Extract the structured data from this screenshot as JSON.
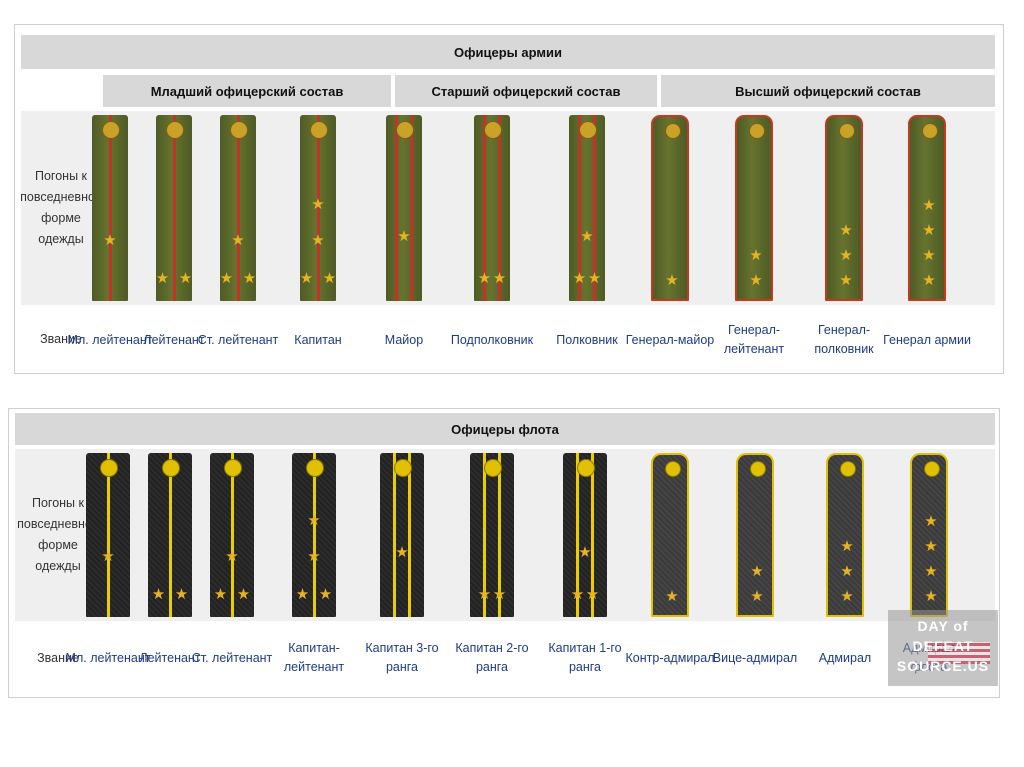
{
  "army": {
    "title": "Офицеры армии",
    "groups": [
      "Младший офицерский состав",
      "Старший офицерский состав",
      "Высший офицерский состав"
    ],
    "row_label": "Погоны к повседневной форме одежды",
    "rank_label": "Звание",
    "ranks": [
      "Мл. лейтенант",
      "Лейтенант",
      "Ст. лейтенант",
      "Капитан",
      "Майор",
      "Подполковник",
      "Полковник",
      "Генерал-майор",
      "Генерал-лейтенант",
      "Генерал-полковник",
      "Генерал армии"
    ],
    "star_counts": [
      1,
      2,
      3,
      4,
      1,
      2,
      3,
      1,
      2,
      3,
      4
    ],
    "stripe_counts": [
      1,
      1,
      1,
      1,
      2,
      2,
      2,
      0,
      0,
      0,
      0
    ],
    "colors": {
      "board": "#5c6a2a",
      "stripe": "#c6322a",
      "star": "#e6b422",
      "general_border": "#c23a22"
    }
  },
  "navy": {
    "title": "Офицеры флота",
    "row_label": "Погоны к повседневной форме одежды",
    "rank_label": "Звание",
    "ranks": [
      "Мл. лейтенант",
      "Лейтенант",
      "Ст. лейтенант",
      "Капитан-лейтенант",
      "Капитан 3-го ранга",
      "Капитан 2-го ранга",
      "Капитан 1-го ранга",
      "Контр-адмирал",
      "Вице-адмирал",
      "Адмирал",
      "Адмирал флота"
    ],
    "star_counts": [
      1,
      2,
      3,
      4,
      1,
      2,
      3,
      1,
      2,
      3,
      4
    ],
    "stripe_counts": [
      1,
      1,
      1,
      1,
      2,
      2,
      2,
      0,
      0,
      0,
      0
    ],
    "colors": {
      "board": "#262626",
      "stripe": "#e8d000",
      "star": "#e6b422",
      "admiral_border": "#e0c000"
    }
  },
  "watermark": {
    "text": "DAY of DEFEAT SOURCE.US"
  }
}
